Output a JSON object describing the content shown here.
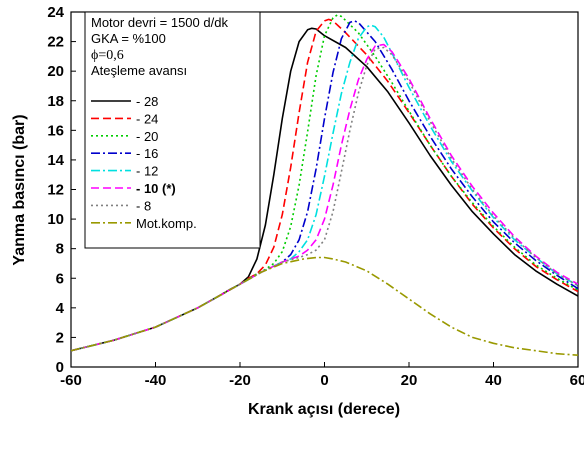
{
  "chart_data": {
    "type": "line",
    "xlabel": "Krank açısı (derece)",
    "ylabel": "Yanma basıncı (bar)",
    "xlim": [
      -60,
      60
    ],
    "ylim": [
      0,
      24
    ],
    "xticks": [
      -60,
      -40,
      -20,
      0,
      20,
      40,
      60
    ],
    "yticks": [
      0,
      2,
      4,
      6,
      8,
      10,
      12,
      14,
      16,
      18,
      20,
      22,
      24
    ],
    "annotations": [
      "Motor devri = 1500 d/dk",
      "GKA = %100",
      "ϕ=0,6",
      "Ateşleme avansı"
    ],
    "legend_position": "top-left",
    "grid": false,
    "series": [
      {
        "name": "- 28",
        "color": "#000000",
        "dash": "solid",
        "x": [
          -60,
          -50,
          -40,
          -30,
          -25,
          -22,
          -20,
          -18,
          -16,
          -14,
          -12,
          -10,
          -8,
          -6,
          -4,
          -3,
          -2,
          0,
          5,
          10,
          15,
          20,
          25,
          30,
          35,
          40,
          45,
          50,
          55,
          60
        ],
        "y": [
          1.1,
          1.8,
          2.7,
          4.0,
          4.8,
          5.3,
          5.6,
          6.1,
          7.3,
          9.6,
          13.0,
          16.8,
          20.0,
          22.0,
          22.8,
          22.9,
          22.85,
          22.4,
          21.6,
          20.3,
          18.6,
          16.5,
          14.3,
          12.3,
          10.5,
          9.0,
          7.6,
          6.5,
          5.6,
          4.8
        ]
      },
      {
        "name": "- 24",
        "color": "#ff0000",
        "dash": "dashed",
        "x": [
          -60,
          -50,
          -40,
          -30,
          -25,
          -20,
          -18,
          -16,
          -14,
          -12,
          -10,
          -8,
          -6,
          -4,
          -2,
          0,
          1,
          2,
          5,
          10,
          15,
          20,
          25,
          30,
          35,
          40,
          45,
          50,
          55,
          60
        ],
        "y": [
          1.1,
          1.8,
          2.7,
          4.0,
          4.8,
          5.6,
          6.0,
          6.3,
          6.9,
          8.1,
          10.3,
          13.5,
          17.2,
          20.6,
          22.7,
          23.4,
          23.5,
          23.4,
          22.6,
          21.1,
          19.3,
          17.2,
          15.0,
          12.9,
          11.0,
          9.4,
          8.0,
          6.8,
          5.9,
          5.1
        ]
      },
      {
        "name": "- 20",
        "color": "#00cc00",
        "dash": "dotted",
        "x": [
          -60,
          -50,
          -40,
          -30,
          -25,
          -20,
          -16,
          -14,
          -12,
          -10,
          -8,
          -6,
          -4,
          -2,
          0,
          2,
          3,
          4,
          8,
          12,
          16,
          20,
          25,
          30,
          35,
          40,
          45,
          50,
          55,
          60
        ],
        "y": [
          1.1,
          1.8,
          2.7,
          4.0,
          4.8,
          5.6,
          6.3,
          6.6,
          7.0,
          7.8,
          9.5,
          12.3,
          15.9,
          19.7,
          22.4,
          23.6,
          23.8,
          23.7,
          22.6,
          21.0,
          19.2,
          17.3,
          15.0,
          12.9,
          11.1,
          9.5,
          8.1,
          6.9,
          6.0,
          5.2
        ]
      },
      {
        "name": "- 16",
        "color": "#0000cc",
        "dash": "dashdot",
        "x": [
          -60,
          -50,
          -40,
          -30,
          -25,
          -20,
          -15,
          -12,
          -10,
          -8,
          -6,
          -4,
          -2,
          0,
          2,
          4,
          6,
          7,
          8,
          12,
          16,
          20,
          25,
          30,
          35,
          40,
          45,
          50,
          55,
          60
        ],
        "y": [
          1.1,
          1.8,
          2.7,
          4.0,
          4.8,
          5.6,
          6.4,
          6.8,
          7.1,
          7.6,
          8.6,
          10.5,
          13.4,
          16.8,
          19.9,
          22.2,
          23.3,
          23.4,
          23.3,
          22.0,
          20.1,
          18.0,
          15.6,
          13.4,
          11.5,
          9.8,
          8.4,
          7.2,
          6.2,
          5.3
        ]
      },
      {
        "name": "- 12",
        "color": "#00e0e0",
        "dash": "dashdot",
        "x": [
          -60,
          -50,
          -40,
          -30,
          -25,
          -20,
          -15,
          -10,
          -8,
          -6,
          -4,
          -2,
          0,
          2,
          4,
          6,
          8,
          10,
          11,
          12,
          14,
          16,
          20,
          25,
          30,
          35,
          40,
          45,
          50,
          55,
          60
        ],
        "y": [
          1.1,
          1.8,
          2.7,
          4.0,
          4.8,
          5.6,
          6.4,
          7.1,
          7.3,
          7.8,
          8.6,
          10.3,
          12.9,
          15.8,
          18.5,
          20.6,
          22.2,
          23.0,
          23.1,
          23.0,
          22.3,
          21.2,
          18.9,
          16.3,
          13.9,
          11.9,
          10.1,
          8.6,
          7.4,
          6.3,
          5.5
        ]
      },
      {
        "name": "- 10 (*)",
        "color": "#ff00ff",
        "dash": "dashed",
        "bold": true,
        "x": [
          -60,
          -50,
          -40,
          -30,
          -25,
          -20,
          -15,
          -10,
          -6,
          -4,
          -2,
          0,
          2,
          4,
          6,
          8,
          10,
          12,
          14,
          16,
          20,
          25,
          30,
          35,
          40,
          45,
          50,
          55,
          60
        ],
        "y": [
          1.1,
          1.8,
          2.7,
          4.0,
          4.8,
          5.6,
          6.4,
          7.1,
          7.5,
          7.9,
          8.6,
          10.0,
          12.3,
          15.0,
          17.4,
          19.4,
          20.8,
          21.7,
          21.8,
          21.3,
          19.5,
          16.8,
          14.3,
          12.2,
          10.4,
          8.8,
          7.5,
          6.4,
          5.6
        ]
      },
      {
        "name": "- 8",
        "color": "#808080",
        "dash": "dotted",
        "x": [
          -60,
          -50,
          -40,
          -30,
          -25,
          -20,
          -15,
          -10,
          -6,
          -4,
          -2,
          0,
          2,
          4,
          6,
          8,
          10,
          12,
          14,
          16,
          20,
          25,
          30,
          35,
          40,
          45,
          50,
          55,
          60
        ],
        "y": [
          1.1,
          1.8,
          2.7,
          4.0,
          4.8,
          5.6,
          6.4,
          7.1,
          7.4,
          7.6,
          7.9,
          8.6,
          10.5,
          13.2,
          16.0,
          18.5,
          20.4,
          21.5,
          21.6,
          21.1,
          19.3,
          16.6,
          14.1,
          12.0,
          10.2,
          8.7,
          7.4,
          6.3,
          5.5
        ]
      },
      {
        "name": "Mot.komp.",
        "color": "#999900",
        "dash": "dashdot",
        "x": [
          -60,
          -50,
          -40,
          -30,
          -25,
          -20,
          -15,
          -10,
          -5,
          -2,
          0,
          2,
          5,
          10,
          15,
          20,
          25,
          30,
          35,
          40,
          45,
          50,
          55,
          60
        ],
        "y": [
          1.1,
          1.8,
          2.7,
          4.0,
          4.8,
          5.6,
          6.4,
          7.0,
          7.3,
          7.4,
          7.4,
          7.3,
          7.1,
          6.5,
          5.6,
          4.6,
          3.6,
          2.7,
          2.0,
          1.6,
          1.3,
          1.1,
          0.9,
          0.8
        ]
      }
    ]
  }
}
